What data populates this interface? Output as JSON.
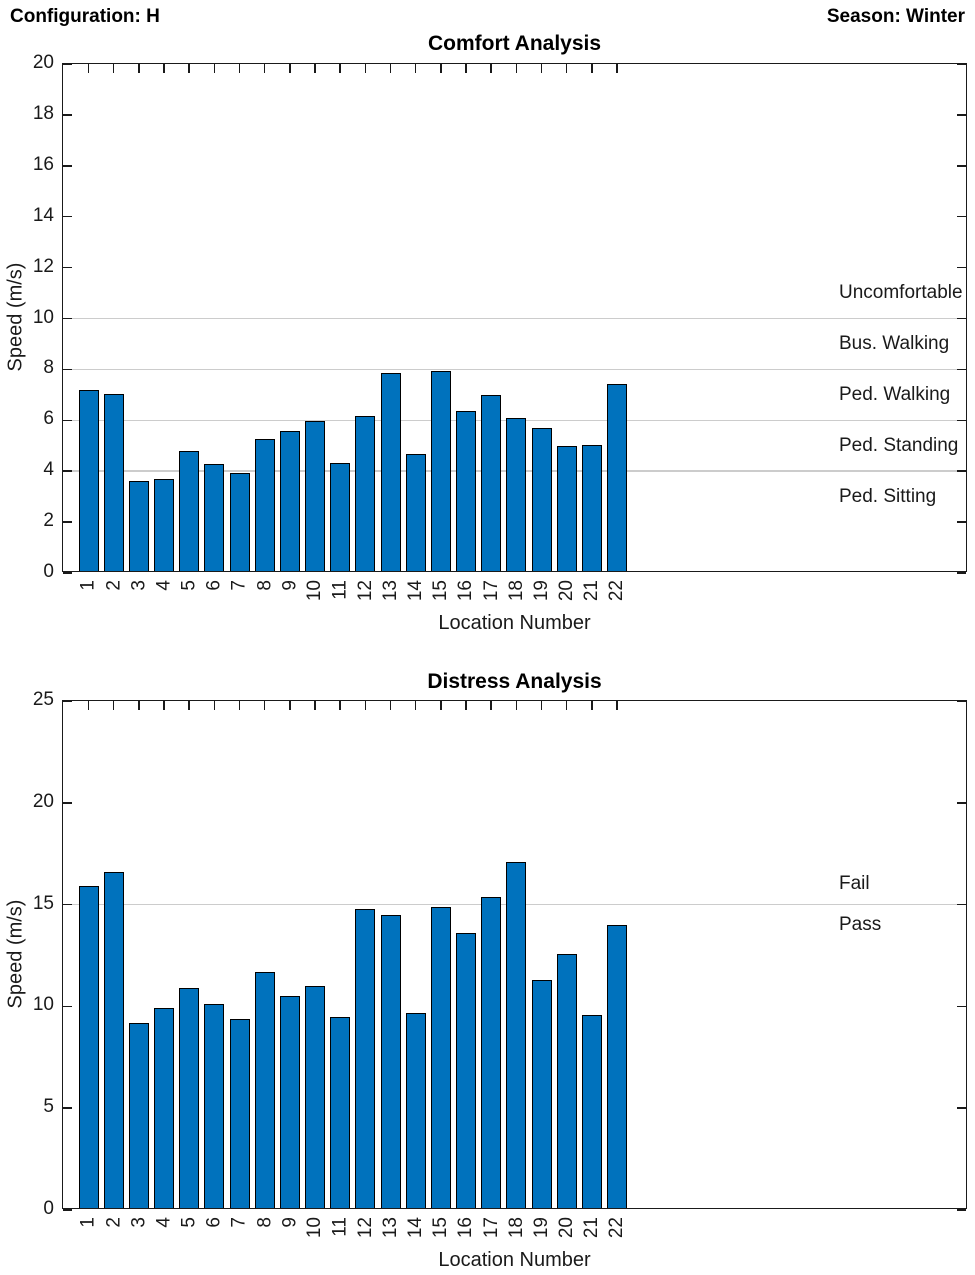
{
  "header": {
    "left_label": "Configuration: H",
    "right_label": "Season: Winter"
  },
  "chart_data": [
    {
      "type": "bar",
      "title": "Comfort Analysis",
      "xlabel": "Location Number",
      "ylabel": "Speed (m/s)",
      "ylim": [
        0,
        20
      ],
      "yticks": [
        0,
        2,
        4,
        6,
        8,
        10,
        12,
        14,
        16,
        18,
        20
      ],
      "grid": "off",
      "legend": "none",
      "bar_color": "#0072bd",
      "bar_edge_color": "#000000",
      "threshold_line_color": "#cccccc",
      "categories": [
        "1",
        "2",
        "3",
        "4",
        "5",
        "6",
        "7",
        "8",
        "9",
        "10",
        "11",
        "12",
        "13",
        "14",
        "15",
        "16",
        "17",
        "18",
        "19",
        "20",
        "21",
        "22"
      ],
      "values": [
        7.1,
        6.95,
        3.55,
        3.6,
        4.7,
        4.2,
        3.85,
        5.2,
        5.5,
        5.9,
        4.25,
        6.1,
        7.8,
        4.6,
        7.85,
        6.3,
        6.9,
        6.0,
        5.6,
        4.9,
        4.95,
        7.35
      ],
      "threshold_lines": [
        4,
        6,
        8,
        10
      ],
      "threshold_labels": [
        {
          "text": "Uncomfortable",
          "at": 11
        },
        {
          "text": "Bus. Walking",
          "at": 9
        },
        {
          "text": "Ped. Walking",
          "at": 7
        },
        {
          "text": "Ped. Standing",
          "at": 5
        },
        {
          "text": "Ped. Sitting",
          "at": 3
        }
      ]
    },
    {
      "type": "bar",
      "title": "Distress Analysis",
      "xlabel": "Location Number",
      "ylabel": "Speed (m/s)",
      "ylim": [
        0,
        25
      ],
      "yticks": [
        0,
        5,
        10,
        15,
        20,
        25
      ],
      "grid": "off",
      "legend": "none",
      "bar_color": "#0072bd",
      "bar_edge_color": "#000000",
      "threshold_line_color": "#cccccc",
      "categories": [
        "1",
        "2",
        "3",
        "4",
        "5",
        "6",
        "7",
        "8",
        "9",
        "10",
        "11",
        "12",
        "13",
        "14",
        "15",
        "16",
        "17",
        "18",
        "19",
        "20",
        "21",
        "22"
      ],
      "values": [
        15.8,
        16.5,
        9.1,
        9.8,
        10.8,
        10.0,
        9.3,
        11.6,
        10.4,
        10.9,
        9.4,
        14.7,
        14.4,
        9.6,
        14.8,
        13.5,
        15.3,
        17.0,
        11.2,
        12.5,
        9.5,
        13.9
      ],
      "threshold_lines": [
        15
      ],
      "threshold_labels": [
        {
          "text": "Fail",
          "at": 16
        },
        {
          "text": "Pass",
          "at": 14
        }
      ]
    }
  ]
}
